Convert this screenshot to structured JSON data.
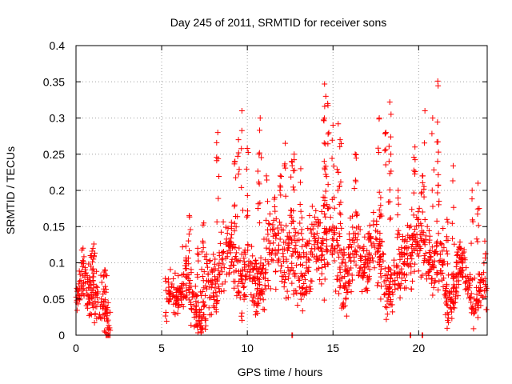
{
  "chart_data": {
    "type": "scatter",
    "title": "Day 245 of 2011, SRMTID for receiver sons",
    "xlabel": "GPS time / hours",
    "ylabel": "SRMTID / TECUs",
    "xlim": [
      0,
      24
    ],
    "ylim": [
      0,
      0.4
    ],
    "xticks": [
      0,
      5,
      10,
      15,
      20
    ],
    "xtick_labels": [
      "0",
      "5",
      "10",
      "15",
      "20"
    ],
    "yticks": [
      0,
      0.05,
      0.1,
      0.15,
      0.2,
      0.25,
      0.3,
      0.35,
      0.4
    ],
    "ytick_labels": [
      "0",
      "0.05",
      "0.1",
      "0.15",
      "0.2",
      "0.25",
      "0.3",
      "0.35",
      "0.4"
    ],
    "grid": true,
    "marker": "+",
    "color": "#ff0000",
    "series": [
      {
        "name": "SRMTID",
        "segments": [
          {
            "x_start": 0.0,
            "x_end": 2.0,
            "level": 0.045,
            "spread": 0.035,
            "peaks": [
              0.12,
              0.126,
              0.11,
              0.09
            ]
          },
          {
            "x_start": 5.2,
            "x_end": 7.6,
            "level": 0.05,
            "spread": 0.035,
            "peaks": [
              0.165,
              0.155,
              0.13,
              0.12
            ]
          },
          {
            "x_start": 7.6,
            "x_end": 11.5,
            "level": 0.09,
            "spread": 0.045,
            "peaks": [
              0.258,
              0.25,
              0.28,
              0.31,
              0.3,
              0.27,
              0.24,
              0.22
            ]
          },
          {
            "x_start": 11.5,
            "x_end": 14.5,
            "level": 0.11,
            "spread": 0.05,
            "peaks": [
              0.265,
              0.25,
              0.24,
              0.24,
              0.23,
              0.22
            ]
          },
          {
            "x_start": 14.5,
            "x_end": 16.5,
            "level": 0.12,
            "spread": 0.05,
            "peaks": [
              0.347,
              0.33,
              0.32,
              0.29,
              0.292,
              0.27,
              0.25
            ]
          },
          {
            "x_start": 16.5,
            "x_end": 19.0,
            "level": 0.095,
            "spread": 0.04,
            "peaks": [
              0.322,
              0.3,
              0.28,
              0.25,
              0.2,
              0.19
            ]
          },
          {
            "x_start": 19.0,
            "x_end": 21.5,
            "level": 0.11,
            "spread": 0.045,
            "peaks": [
              0.351,
              0.31,
              0.3,
              0.26,
              0.24,
              0.22
            ]
          },
          {
            "x_start": 21.5,
            "x_end": 24.0,
            "level": 0.065,
            "spread": 0.03,
            "peaks": [
              0.234,
              0.21,
              0.2,
              0.16,
              0.13
            ]
          }
        ],
        "points_per_hour": 75,
        "zero_points": [
          1.75,
          1.85,
          1.95,
          12.6,
          19.5,
          20.2
        ]
      }
    ]
  }
}
